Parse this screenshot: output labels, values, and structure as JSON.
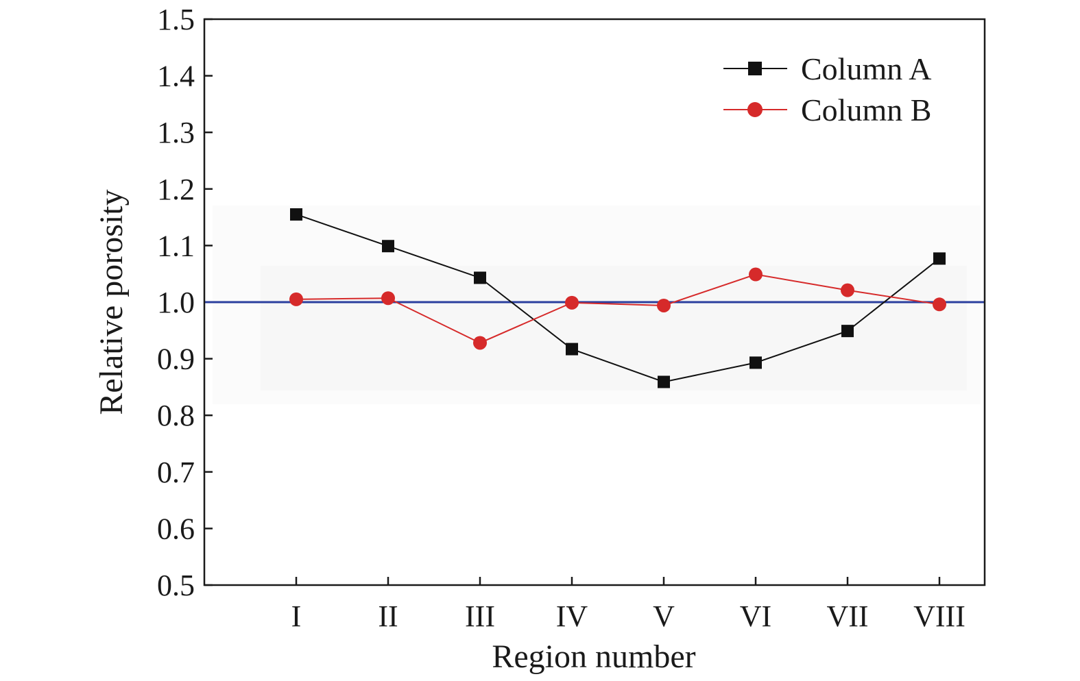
{
  "chart_data": {
    "type": "line",
    "xlabel": "Region number",
    "ylabel": "Relative porosity",
    "categories": [
      "I",
      "II",
      "III",
      "IV",
      "V",
      "VI",
      "VII",
      "VIII"
    ],
    "ylim": [
      0.5,
      1.5
    ],
    "yticks": [
      "0.5",
      "0.6",
      "0.7",
      "0.8",
      "0.9",
      "1.0",
      "1.1",
      "1.2",
      "1.3",
      "1.4",
      "1.5"
    ],
    "grid": false,
    "legend_position": "top-right",
    "reference_line": {
      "y": 1.0,
      "color": "#2b3f9e"
    },
    "series": [
      {
        "name": "Column A",
        "marker": "square",
        "color": "#111111",
        "values": [
          1.155,
          1.099,
          1.043,
          0.917,
          0.859,
          0.893,
          0.949,
          1.077
        ]
      },
      {
        "name": "Column B",
        "marker": "circle",
        "color": "#d62a2a",
        "values": [
          1.005,
          1.007,
          0.928,
          0.999,
          0.994,
          1.049,
          1.021,
          0.996
        ]
      }
    ]
  }
}
